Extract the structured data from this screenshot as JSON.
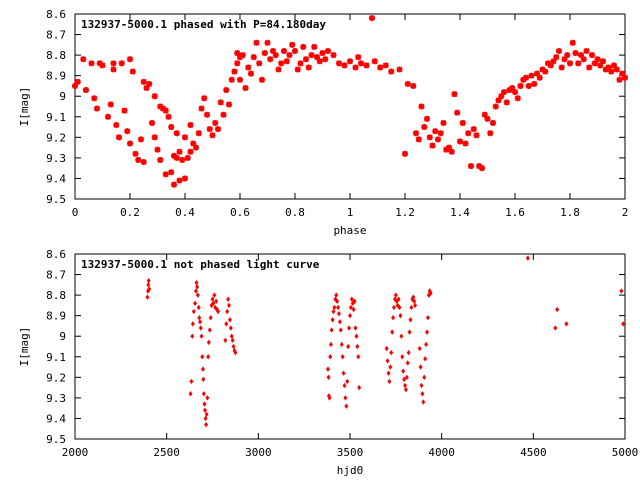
{
  "chart_data": [
    {
      "type": "scatter",
      "title": "132937-5000.1 phased with P=84.180day",
      "xlabel": "phase",
      "ylabel": "I[mag]",
      "xlim": [
        0,
        2
      ],
      "ylim": [
        9.5,
        8.6
      ],
      "y_inverted": true,
      "grid": false,
      "marker_color": "#ff0000",
      "xticks": [
        "0",
        "0.2",
        "0.4",
        "0.6",
        "0.8",
        "1",
        "1.2",
        "1.4",
        "1.6",
        "1.8",
        "2"
      ],
      "xtick_values": [
        0,
        0.2,
        0.4,
        0.6,
        0.8,
        1.0,
        1.2,
        1.4,
        1.6,
        1.8,
        2.0
      ],
      "yticks": [
        "8.6",
        "8.7",
        "8.8",
        "8.9",
        "9",
        "9.1",
        "9.2",
        "9.3",
        "9.4",
        "9.5"
      ],
      "ytick_values": [
        8.6,
        8.7,
        8.8,
        8.9,
        9.0,
        9.1,
        9.2,
        9.3,
        9.4,
        9.5
      ],
      "points": [
        [
          0.0,
          8.95
        ],
        [
          0.01,
          8.93
        ],
        [
          0.03,
          8.82
        ],
        [
          0.04,
          8.97
        ],
        [
          0.06,
          8.84
        ],
        [
          0.07,
          9.01
        ],
        [
          0.08,
          9.06
        ],
        [
          0.09,
          8.84
        ],
        [
          0.1,
          8.85
        ],
        [
          0.12,
          9.1
        ],
        [
          0.13,
          9.04
        ],
        [
          0.14,
          8.84
        ],
        [
          0.14,
          8.87
        ],
        [
          0.15,
          9.14
        ],
        [
          0.16,
          9.2
        ],
        [
          0.17,
          8.84
        ],
        [
          0.18,
          9.07
        ],
        [
          0.19,
          9.17
        ],
        [
          0.2,
          9.23
        ],
        [
          0.2,
          8.82
        ],
        [
          0.21,
          8.88
        ],
        [
          0.22,
          9.28
        ],
        [
          0.23,
          9.31
        ],
        [
          0.24,
          9.21
        ],
        [
          0.25,
          8.93
        ],
        [
          0.25,
          9.32
        ],
        [
          0.26,
          8.96
        ],
        [
          0.27,
          8.94
        ],
        [
          0.28,
          9.13
        ],
        [
          0.29,
          9.0
        ],
        [
          0.29,
          9.2
        ],
        [
          0.3,
          9.26
        ],
        [
          0.31,
          9.05
        ],
        [
          0.31,
          9.31
        ],
        [
          0.32,
          9.06
        ],
        [
          0.33,
          9.38
        ],
        [
          0.33,
          9.07
        ],
        [
          0.34,
          9.1
        ],
        [
          0.35,
          9.37
        ],
        [
          0.35,
          9.15
        ],
        [
          0.36,
          9.29
        ],
        [
          0.36,
          9.43
        ],
        [
          0.37,
          9.18
        ],
        [
          0.37,
          9.3
        ],
        [
          0.38,
          9.41
        ],
        [
          0.38,
          9.27
        ],
        [
          0.39,
          9.31
        ],
        [
          0.4,
          9.4
        ],
        [
          0.4,
          9.2
        ],
        [
          0.41,
          9.3
        ],
        [
          0.42,
          9.27
        ],
        [
          0.42,
          9.14
        ],
        [
          0.43,
          9.23
        ],
        [
          0.44,
          9.25
        ],
        [
          0.45,
          9.18
        ],
        [
          0.46,
          9.06
        ],
        [
          0.47,
          9.01
        ],
        [
          0.48,
          9.09
        ],
        [
          0.49,
          9.16
        ],
        [
          0.5,
          9.19
        ],
        [
          0.51,
          9.13
        ],
        [
          0.52,
          9.16
        ],
        [
          0.53,
          9.03
        ],
        [
          0.54,
          9.09
        ],
        [
          0.55,
          8.97
        ],
        [
          0.56,
          9.04
        ],
        [
          0.57,
          8.92
        ],
        [
          0.58,
          8.88
        ],
        [
          0.59,
          8.79
        ],
        [
          0.59,
          8.84
        ],
        [
          0.6,
          8.81
        ],
        [
          0.6,
          8.92
        ],
        [
          0.61,
          8.8
        ],
        [
          0.62,
          8.96
        ],
        [
          0.63,
          8.86
        ],
        [
          0.64,
          8.89
        ],
        [
          0.65,
          8.81
        ],
        [
          0.66,
          8.74
        ],
        [
          0.67,
          8.84
        ],
        [
          0.68,
          8.92
        ],
        [
          0.69,
          8.79
        ],
        [
          0.7,
          8.74
        ],
        [
          0.71,
          8.82
        ],
        [
          0.72,
          8.78
        ],
        [
          0.73,
          8.8
        ],
        [
          0.74,
          8.87
        ],
        [
          0.75,
          8.84
        ],
        [
          0.76,
          8.78
        ],
        [
          0.77,
          8.83
        ],
        [
          0.78,
          8.8
        ],
        [
          0.79,
          8.75
        ],
        [
          0.8,
          8.78
        ],
        [
          0.81,
          8.87
        ],
        [
          0.82,
          8.84
        ],
        [
          0.83,
          8.76
        ],
        [
          0.84,
          8.82
        ],
        [
          0.85,
          8.86
        ],
        [
          0.86,
          8.8
        ],
        [
          0.87,
          8.76
        ],
        [
          0.88,
          8.81
        ],
        [
          0.89,
          8.83
        ],
        [
          0.9,
          8.79
        ],
        [
          0.91,
          8.82
        ],
        [
          0.92,
          8.78
        ],
        [
          0.94,
          8.8
        ],
        [
          0.96,
          8.84
        ],
        [
          0.98,
          8.85
        ],
        [
          1.0,
          8.83
        ],
        [
          1.02,
          8.86
        ],
        [
          1.03,
          8.81
        ],
        [
          1.04,
          8.84
        ],
        [
          1.06,
          8.85
        ],
        [
          1.08,
          8.62
        ],
        [
          1.09,
          8.83
        ],
        [
          1.11,
          8.86
        ],
        [
          1.13,
          8.85
        ],
        [
          1.15,
          8.88
        ],
        [
          1.18,
          8.87
        ],
        [
          1.2,
          9.28
        ],
        [
          1.21,
          8.94
        ],
        [
          1.23,
          8.95
        ],
        [
          1.24,
          9.18
        ],
        [
          1.25,
          9.21
        ],
        [
          1.26,
          9.05
        ],
        [
          1.27,
          9.15
        ],
        [
          1.28,
          9.11
        ],
        [
          1.29,
          9.2
        ],
        [
          1.3,
          9.24
        ],
        [
          1.31,
          9.17
        ],
        [
          1.32,
          9.21
        ],
        [
          1.33,
          9.18
        ],
        [
          1.34,
          9.13
        ],
        [
          1.35,
          9.26
        ],
        [
          1.36,
          9.25
        ],
        [
          1.37,
          9.27
        ],
        [
          1.38,
          8.99
        ],
        [
          1.39,
          9.08
        ],
        [
          1.4,
          9.22
        ],
        [
          1.41,
          9.13
        ],
        [
          1.42,
          9.23
        ],
        [
          1.43,
          9.18
        ],
        [
          1.44,
          9.34
        ],
        [
          1.45,
          9.16
        ],
        [
          1.46,
          9.19
        ],
        [
          1.47,
          9.34
        ],
        [
          1.48,
          9.35
        ],
        [
          1.49,
          9.09
        ],
        [
          1.5,
          9.11
        ],
        [
          1.51,
          9.18
        ],
        [
          1.52,
          9.13
        ],
        [
          1.53,
          9.05
        ],
        [
          1.54,
          9.02
        ],
        [
          1.55,
          9.0
        ],
        [
          1.56,
          8.98
        ],
        [
          1.57,
          9.03
        ],
        [
          1.58,
          8.97
        ],
        [
          1.59,
          8.96
        ],
        [
          1.6,
          8.98
        ],
        [
          1.61,
          9.01
        ],
        [
          1.62,
          8.95
        ],
        [
          1.63,
          8.92
        ],
        [
          1.64,
          8.91
        ],
        [
          1.65,
          8.95
        ],
        [
          1.66,
          8.9
        ],
        [
          1.67,
          8.94
        ],
        [
          1.68,
          8.89
        ],
        [
          1.69,
          8.91
        ],
        [
          1.7,
          8.87
        ],
        [
          1.71,
          8.88
        ],
        [
          1.72,
          8.84
        ],
        [
          1.73,
          8.85
        ],
        [
          1.74,
          8.83
        ],
        [
          1.75,
          8.81
        ],
        [
          1.76,
          8.78
        ],
        [
          1.77,
          8.86
        ],
        [
          1.78,
          8.82
        ],
        [
          1.79,
          8.8
        ],
        [
          1.8,
          8.84
        ],
        [
          1.81,
          8.74
        ],
        [
          1.82,
          8.79
        ],
        [
          1.83,
          8.84
        ],
        [
          1.84,
          8.8
        ],
        [
          1.85,
          8.82
        ],
        [
          1.86,
          8.78
        ],
        [
          1.87,
          8.86
        ],
        [
          1.88,
          8.8
        ],
        [
          1.89,
          8.84
        ],
        [
          1.9,
          8.82
        ],
        [
          1.91,
          8.85
        ],
        [
          1.92,
          8.83
        ],
        [
          1.93,
          8.87
        ],
        [
          1.94,
          8.86
        ],
        [
          1.95,
          8.88
        ],
        [
          1.96,
          8.85
        ],
        [
          1.97,
          8.87
        ],
        [
          1.98,
          8.92
        ],
        [
          1.99,
          8.89
        ],
        [
          2.0,
          8.91
        ]
      ]
    },
    {
      "type": "scatter",
      "title": "132937-5000.1 not phased light curve",
      "xlabel": "hjd0",
      "ylabel": "I[mag]",
      "xlim": [
        2000,
        5000
      ],
      "ylim": [
        9.5,
        8.6
      ],
      "y_inverted": true,
      "grid": false,
      "marker_color": "#ff0000",
      "xticks": [
        "2000",
        "2500",
        "3000",
        "3500",
        "4000",
        "4500",
        "5000"
      ],
      "xtick_values": [
        2000,
        2500,
        3000,
        3500,
        4000,
        4500,
        5000
      ],
      "yticks": [
        "8.6",
        "8.7",
        "8.8",
        "8.9",
        "9",
        "9.1",
        "9.2",
        "9.3",
        "9.4",
        "9.5"
      ],
      "ytick_values": [
        8.6,
        8.7,
        8.8,
        8.9,
        9.0,
        9.1,
        9.2,
        9.3,
        9.4,
        9.5
      ],
      "points": [
        [
          2395,
          8.81
        ],
        [
          2398,
          8.78
        ],
        [
          2400,
          8.75
        ],
        [
          2402,
          8.73
        ],
        [
          2405,
          8.77
        ],
        [
          2630,
          9.28
        ],
        [
          2635,
          9.22
        ],
        [
          2640,
          9.0
        ],
        [
          2643,
          8.94
        ],
        [
          2648,
          8.88
        ],
        [
          2655,
          8.84
        ],
        [
          2660,
          8.78
        ],
        [
          2663,
          8.74
        ],
        [
          2666,
          8.76
        ],
        [
          2670,
          8.8
        ],
        [
          2675,
          8.86
        ],
        [
          2678,
          8.91
        ],
        [
          2682,
          8.93
        ],
        [
          2686,
          8.96
        ],
        [
          2690,
          9.0
        ],
        [
          2694,
          9.1
        ],
        [
          2698,
          9.16
        ],
        [
          2700,
          9.21
        ],
        [
          2703,
          9.28
        ],
        [
          2706,
          9.33
        ],
        [
          2709,
          9.36
        ],
        [
          2712,
          9.4
        ],
        [
          2715,
          9.43
        ],
        [
          2718,
          9.38
        ],
        [
          2722,
          9.3
        ],
        [
          2726,
          9.1
        ],
        [
          2730,
          9.03
        ],
        [
          2735,
          8.97
        ],
        [
          2740,
          8.91
        ],
        [
          2745,
          8.85
        ],
        [
          2750,
          8.82
        ],
        [
          2755,
          8.84
        ],
        [
          2760,
          8.8
        ],
        [
          2765,
          8.86
        ],
        [
          2770,
          8.83
        ],
        [
          2775,
          8.87
        ],
        [
          2780,
          8.88
        ],
        [
          2820,
          9.02
        ],
        [
          2825,
          8.94
        ],
        [
          2830,
          8.88
        ],
        [
          2835,
          8.82
        ],
        [
          2840,
          8.85
        ],
        [
          2845,
          8.92
        ],
        [
          2850,
          8.96
        ],
        [
          2855,
          9.0
        ],
        [
          2860,
          9.02
        ],
        [
          2865,
          9.05
        ],
        [
          2870,
          9.07
        ],
        [
          2875,
          9.08
        ],
        [
          3380,
          9.16
        ],
        [
          3383,
          9.2
        ],
        [
          3385,
          9.29
        ],
        [
          3388,
          9.3
        ],
        [
          3392,
          9.1
        ],
        [
          3396,
          9.04
        ],
        [
          3400,
          8.97
        ],
        [
          3405,
          8.92
        ],
        [
          3410,
          8.88
        ],
        [
          3415,
          8.86
        ],
        [
          3420,
          8.82
        ],
        [
          3425,
          8.8
        ],
        [
          3430,
          8.83
        ],
        [
          3435,
          8.86
        ],
        [
          3440,
          8.89
        ],
        [
          3445,
          8.93
        ],
        [
          3450,
          8.97
        ],
        [
          3455,
          9.04
        ],
        [
          3460,
          9.1
        ],
        [
          3465,
          9.18
        ],
        [
          3470,
          9.24
        ],
        [
          3475,
          9.3
        ],
        [
          3480,
          9.34
        ],
        [
          3485,
          9.22
        ],
        [
          3490,
          9.05
        ],
        [
          3495,
          8.96
        ],
        [
          3500,
          8.9
        ],
        [
          3505,
          8.86
        ],
        [
          3510,
          8.82
        ],
        [
          3515,
          8.84
        ],
        [
          3520,
          8.87
        ],
        [
          3525,
          8.83
        ],
        [
          3530,
          8.96
        ],
        [
          3535,
          9.0
        ],
        [
          3540,
          9.05
        ],
        [
          3545,
          9.1
        ],
        [
          3550,
          9.25
        ],
        [
          3700,
          9.06
        ],
        [
          3705,
          9.12
        ],
        [
          3710,
          9.18
        ],
        [
          3715,
          9.22
        ],
        [
          3720,
          9.15
        ],
        [
          3725,
          9.08
        ],
        [
          3730,
          8.98
        ],
        [
          3735,
          8.91
        ],
        [
          3740,
          8.86
        ],
        [
          3745,
          8.82
        ],
        [
          3750,
          8.8
        ],
        [
          3755,
          8.83
        ],
        [
          3760,
          8.85
        ],
        [
          3765,
          8.82
        ],
        [
          3770,
          8.86
        ],
        [
          3775,
          8.9
        ],
        [
          3780,
          9.0
        ],
        [
          3785,
          9.1
        ],
        [
          3790,
          9.17
        ],
        [
          3795,
          9.21
        ],
        [
          3800,
          9.24
        ],
        [
          3805,
          9.26
        ],
        [
          3810,
          9.2
        ],
        [
          3815,
          9.13
        ],
        [
          3820,
          9.08
        ],
        [
          3825,
          8.98
        ],
        [
          3830,
          8.92
        ],
        [
          3835,
          8.86
        ],
        [
          3840,
          8.82
        ],
        [
          3845,
          8.81
        ],
        [
          3850,
          8.83
        ],
        [
          3855,
          8.85
        ],
        [
          3880,
          9.06
        ],
        [
          3885,
          9.15
        ],
        [
          3890,
          9.24
        ],
        [
          3895,
          9.28
        ],
        [
          3900,
          9.32
        ],
        [
          3905,
          9.2
        ],
        [
          3910,
          9.11
        ],
        [
          3915,
          9.04
        ],
        [
          3920,
          8.98
        ],
        [
          3925,
          8.91
        ],
        [
          3930,
          8.8
        ],
        [
          3935,
          8.78
        ],
        [
          3940,
          8.79
        ],
        [
          4470,
          8.62
        ],
        [
          4620,
          8.96
        ],
        [
          4630,
          8.87
        ],
        [
          4680,
          8.94
        ],
        [
          4980,
          8.78
        ],
        [
          4990,
          8.94
        ]
      ]
    }
  ]
}
